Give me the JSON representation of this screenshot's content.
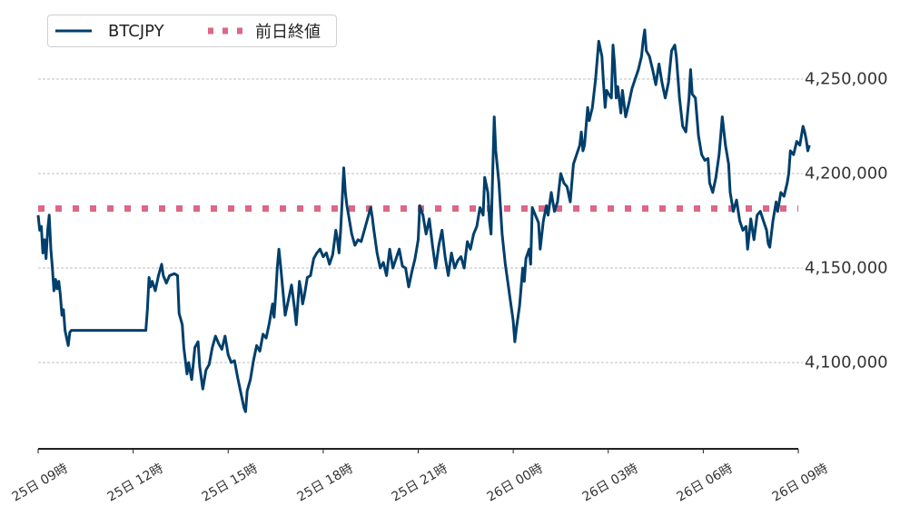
{
  "legend": {
    "series_label": "BTCJPY",
    "reference_label": "前日終値"
  },
  "colors": {
    "series": "#003f6b",
    "reference": "#dd6786",
    "grid": "#aaaaaa",
    "axis": "#222222"
  },
  "y_axis": {
    "ticks": [
      {
        "value": 4250000,
        "label": "4,250,000"
      },
      {
        "value": 4200000,
        "label": "4,200,000"
      },
      {
        "value": 4150000,
        "label": "4,150,000"
      },
      {
        "value": 4100000,
        "label": "4,100,000"
      }
    ]
  },
  "x_axis": {
    "ticks": [
      {
        "hour": 0,
        "label": "25日 09時"
      },
      {
        "hour": 3,
        "label": "25日 12時"
      },
      {
        "hour": 6,
        "label": "25日 15時"
      },
      {
        "hour": 9,
        "label": "25日 18時"
      },
      {
        "hour": 12,
        "label": "25日 21時"
      },
      {
        "hour": 15,
        "label": "26日 00時"
      },
      {
        "hour": 18,
        "label": "26日 03時"
      },
      {
        "hour": 21,
        "label": "26日 06時"
      },
      {
        "hour": 24,
        "label": "26日 09時"
      }
    ]
  },
  "chart_data": {
    "type": "line",
    "title": "",
    "xlabel": "",
    "ylabel": "",
    "x_range_hours": [
      0,
      24
    ],
    "x_start_label": "25日 09時",
    "x_end_label": "26日 09時",
    "ylim": [
      4055000,
      4280000
    ],
    "grid": "horizontal dashed",
    "legend_position": "upper left",
    "reference_line": {
      "name": "前日終値",
      "value": 4181500,
      "style": "dotted"
    },
    "series": [
      {
        "name": "BTCJPY",
        "points": [
          [
            0.0,
            4178000
          ],
          [
            0.05,
            4170000
          ],
          [
            0.1,
            4172000
          ],
          [
            0.15,
            4158000
          ],
          [
            0.2,
            4165000
          ],
          [
            0.25,
            4155000
          ],
          [
            0.3,
            4170000
          ],
          [
            0.35,
            4178000
          ],
          [
            0.4,
            4160000
          ],
          [
            0.45,
            4150000
          ],
          [
            0.5,
            4138000
          ],
          [
            0.55,
            4144000
          ],
          [
            0.6,
            4139000
          ],
          [
            0.65,
            4143000
          ],
          [
            0.7,
            4136000
          ],
          [
            0.75,
            4125000
          ],
          [
            0.8,
            4128000
          ],
          [
            0.85,
            4117000
          ],
          [
            0.9,
            4113000
          ],
          [
            0.95,
            4109000
          ],
          [
            1.0,
            4116000
          ],
          [
            1.05,
            4117000
          ],
          [
            1.5,
            4117000
          ],
          [
            2.0,
            4117000
          ],
          [
            2.5,
            4117000
          ],
          [
            3.0,
            4117000
          ],
          [
            3.4,
            4117000
          ],
          [
            3.45,
            4128000
          ],
          [
            3.5,
            4145000
          ],
          [
            3.55,
            4140000
          ],
          [
            3.6,
            4143000
          ],
          [
            3.7,
            4138000
          ],
          [
            3.8,
            4146000
          ],
          [
            3.9,
            4152000
          ],
          [
            3.95,
            4146000
          ],
          [
            4.05,
            4142000
          ],
          [
            4.15,
            4146000
          ],
          [
            4.3,
            4147000
          ],
          [
            4.4,
            4146000
          ],
          [
            4.45,
            4126000
          ],
          [
            4.55,
            4120000
          ],
          [
            4.6,
            4108000
          ],
          [
            4.7,
            4094000
          ],
          [
            4.75,
            4100000
          ],
          [
            4.85,
            4091000
          ],
          [
            4.95,
            4108000
          ],
          [
            5.05,
            4111000
          ],
          [
            5.1,
            4098000
          ],
          [
            5.2,
            4086000
          ],
          [
            5.3,
            4096000
          ],
          [
            5.4,
            4099000
          ],
          [
            5.5,
            4108000
          ],
          [
            5.6,
            4114000
          ],
          [
            5.7,
            4110000
          ],
          [
            5.8,
            4107000
          ],
          [
            5.9,
            4114000
          ],
          [
            6.0,
            4104000
          ],
          [
            6.1,
            4100000
          ],
          [
            6.2,
            4101000
          ],
          [
            6.3,
            4092000
          ],
          [
            6.4,
            4084000
          ],
          [
            6.5,
            4076000
          ],
          [
            6.55,
            4074000
          ],
          [
            6.6,
            4085000
          ],
          [
            6.7,
            4091000
          ],
          [
            6.8,
            4101000
          ],
          [
            6.9,
            4109000
          ],
          [
            7.0,
            4106000
          ],
          [
            7.1,
            4115000
          ],
          [
            7.2,
            4113000
          ],
          [
            7.3,
            4121000
          ],
          [
            7.4,
            4131000
          ],
          [
            7.45,
            4124000
          ],
          [
            7.5,
            4136000
          ],
          [
            7.55,
            4150000
          ],
          [
            7.6,
            4160000
          ],
          [
            7.65,
            4152000
          ],
          [
            7.75,
            4134000
          ],
          [
            7.8,
            4125000
          ],
          [
            7.9,
            4133000
          ],
          [
            8.0,
            4141000
          ],
          [
            8.1,
            4128000
          ],
          [
            8.15,
            4120000
          ],
          [
            8.25,
            4143000
          ],
          [
            8.3,
            4138000
          ],
          [
            8.35,
            4131000
          ],
          [
            8.4,
            4135000
          ],
          [
            8.5,
            4145000
          ],
          [
            8.6,
            4146000
          ],
          [
            8.7,
            4155000
          ],
          [
            8.8,
            4158000
          ],
          [
            8.9,
            4160000
          ],
          [
            9.0,
            4156000
          ],
          [
            9.1,
            4158000
          ],
          [
            9.2,
            4152000
          ],
          [
            9.3,
            4157000
          ],
          [
            9.4,
            4170000
          ],
          [
            9.45,
            4165000
          ],
          [
            9.5,
            4158000
          ],
          [
            9.55,
            4170000
          ],
          [
            9.6,
            4186000
          ],
          [
            9.65,
            4203000
          ],
          [
            9.7,
            4190000
          ],
          [
            9.75,
            4183000
          ],
          [
            9.8,
            4178000
          ],
          [
            9.9,
            4168000
          ],
          [
            10.0,
            4162000
          ],
          [
            10.1,
            4165000
          ],
          [
            10.2,
            4164000
          ],
          [
            10.3,
            4170000
          ],
          [
            10.4,
            4176000
          ],
          [
            10.5,
            4182000
          ],
          [
            10.55,
            4177000
          ],
          [
            10.6,
            4170000
          ],
          [
            10.7,
            4158000
          ],
          [
            10.8,
            4150000
          ],
          [
            10.9,
            4153000
          ],
          [
            11.0,
            4146000
          ],
          [
            11.1,
            4160000
          ],
          [
            11.2,
            4150000
          ],
          [
            11.3,
            4155000
          ],
          [
            11.4,
            4160000
          ],
          [
            11.5,
            4151000
          ],
          [
            11.6,
            4150000
          ],
          [
            11.7,
            4140000
          ],
          [
            11.8,
            4148000
          ],
          [
            11.9,
            4155000
          ],
          [
            12.0,
            4165000
          ],
          [
            12.05,
            4183000
          ],
          [
            12.15,
            4178000
          ],
          [
            12.25,
            4168000
          ],
          [
            12.35,
            4176000
          ],
          [
            12.45,
            4162000
          ],
          [
            12.55,
            4150000
          ],
          [
            12.65,
            4162000
          ],
          [
            12.75,
            4170000
          ],
          [
            12.85,
            4156000
          ],
          [
            12.95,
            4146000
          ],
          [
            13.05,
            4158000
          ],
          [
            13.15,
            4150000
          ],
          [
            13.25,
            4154000
          ],
          [
            13.35,
            4156000
          ],
          [
            13.45,
            4150000
          ],
          [
            13.55,
            4164000
          ],
          [
            13.65,
            4160000
          ],
          [
            13.75,
            4168000
          ],
          [
            13.85,
            4172000
          ],
          [
            13.95,
            4182000
          ],
          [
            14.05,
            4178000
          ],
          [
            14.1,
            4198000
          ],
          [
            14.2,
            4190000
          ],
          [
            14.25,
            4175000
          ],
          [
            14.3,
            4168000
          ],
          [
            14.35,
            4200000
          ],
          [
            14.4,
            4230000
          ],
          [
            14.45,
            4212000
          ],
          [
            14.55,
            4195000
          ],
          [
            14.65,
            4168000
          ],
          [
            14.75,
            4152000
          ],
          [
            14.85,
            4140000
          ],
          [
            14.9,
            4134000
          ],
          [
            15.0,
            4122000
          ],
          [
            15.05,
            4111000
          ],
          [
            15.1,
            4118000
          ],
          [
            15.2,
            4130000
          ],
          [
            15.3,
            4150000
          ],
          [
            15.35,
            4143000
          ],
          [
            15.4,
            4155000
          ],
          [
            15.5,
            4160000
          ],
          [
            15.55,
            4152000
          ],
          [
            15.6,
            4182000
          ],
          [
            15.7,
            4178000
          ],
          [
            15.8,
            4174000
          ],
          [
            15.85,
            4160000
          ],
          [
            15.95,
            4175000
          ],
          [
            16.05,
            4183000
          ],
          [
            16.1,
            4178000
          ],
          [
            16.2,
            4190000
          ],
          [
            16.3,
            4180000
          ],
          [
            16.4,
            4185000
          ],
          [
            16.5,
            4200000
          ],
          [
            16.6,
            4195000
          ],
          [
            16.7,
            4193000
          ],
          [
            16.8,
            4185000
          ],
          [
            16.9,
            4205000
          ],
          [
            17.0,
            4210000
          ],
          [
            17.1,
            4215000
          ],
          [
            17.15,
            4222000
          ],
          [
            17.2,
            4212000
          ],
          [
            17.25,
            4215000
          ],
          [
            17.35,
            4235000
          ],
          [
            17.4,
            4228000
          ],
          [
            17.5,
            4235000
          ],
          [
            17.6,
            4250000
          ],
          [
            17.7,
            4270000
          ],
          [
            17.8,
            4262000
          ],
          [
            17.85,
            4248000
          ],
          [
            17.9,
            4235000
          ],
          [
            17.95,
            4244000
          ],
          [
            18.05,
            4241000
          ],
          [
            18.1,
            4240000
          ],
          [
            18.15,
            4268000
          ],
          [
            18.2,
            4258000
          ],
          [
            18.25,
            4240000
          ],
          [
            18.3,
            4246000
          ],
          [
            18.4,
            4232000
          ],
          [
            18.45,
            4244000
          ],
          [
            18.55,
            4230000
          ],
          [
            18.65,
            4237000
          ],
          [
            18.75,
            4245000
          ],
          [
            18.85,
            4250000
          ],
          [
            18.95,
            4255000
          ],
          [
            19.05,
            4262000
          ],
          [
            19.1,
            4270000
          ],
          [
            19.15,
            4276000
          ],
          [
            19.2,
            4265000
          ],
          [
            19.3,
            4262000
          ],
          [
            19.4,
            4255000
          ],
          [
            19.5,
            4247000
          ],
          [
            19.6,
            4258000
          ],
          [
            19.7,
            4248000
          ],
          [
            19.8,
            4240000
          ],
          [
            19.9,
            4248000
          ],
          [
            20.0,
            4265000
          ],
          [
            20.1,
            4268000
          ],
          [
            20.15,
            4262000
          ],
          [
            20.25,
            4240000
          ],
          [
            20.35,
            4225000
          ],
          [
            20.45,
            4222000
          ],
          [
            20.55,
            4240000
          ],
          [
            20.6,
            4255000
          ],
          [
            20.65,
            4242000
          ],
          [
            20.75,
            4240000
          ],
          [
            20.85,
            4220000
          ],
          [
            20.95,
            4210000
          ],
          [
            21.05,
            4207000
          ],
          [
            21.15,
            4208000
          ],
          [
            21.2,
            4195000
          ],
          [
            21.3,
            4190000
          ],
          [
            21.4,
            4198000
          ],
          [
            21.5,
            4210000
          ],
          [
            21.55,
            4220000
          ],
          [
            21.6,
            4230000
          ],
          [
            21.7,
            4215000
          ],
          [
            21.8,
            4205000
          ],
          [
            21.85,
            4190000
          ],
          [
            21.95,
            4180000
          ],
          [
            22.05,
            4186000
          ],
          [
            22.15,
            4175000
          ],
          [
            22.25,
            4170000
          ],
          [
            22.35,
            4172000
          ],
          [
            22.4,
            4160000
          ],
          [
            22.5,
            4176000
          ],
          [
            22.6,
            4165000
          ],
          [
            22.7,
            4178000
          ],
          [
            22.8,
            4180000
          ],
          [
            22.9,
            4175000
          ],
          [
            23.0,
            4170000
          ],
          [
            23.05,
            4163000
          ],
          [
            23.1,
            4161000
          ],
          [
            23.2,
            4175000
          ],
          [
            23.3,
            4185000
          ],
          [
            23.35,
            4180000
          ],
          [
            23.45,
            4190000
          ],
          [
            23.55,
            4188000
          ],
          [
            23.65,
            4195000
          ],
          [
            23.7,
            4200000
          ],
          [
            23.75,
            4212000
          ],
          [
            23.85,
            4210000
          ],
          [
            23.95,
            4217000
          ],
          [
            24.05,
            4215000
          ],
          [
            24.15,
            4225000
          ],
          [
            24.2,
            4222000
          ],
          [
            24.25,
            4218000
          ],
          [
            24.3,
            4212000
          ],
          [
            24.35,
            4215000
          ]
        ]
      }
    ]
  }
}
